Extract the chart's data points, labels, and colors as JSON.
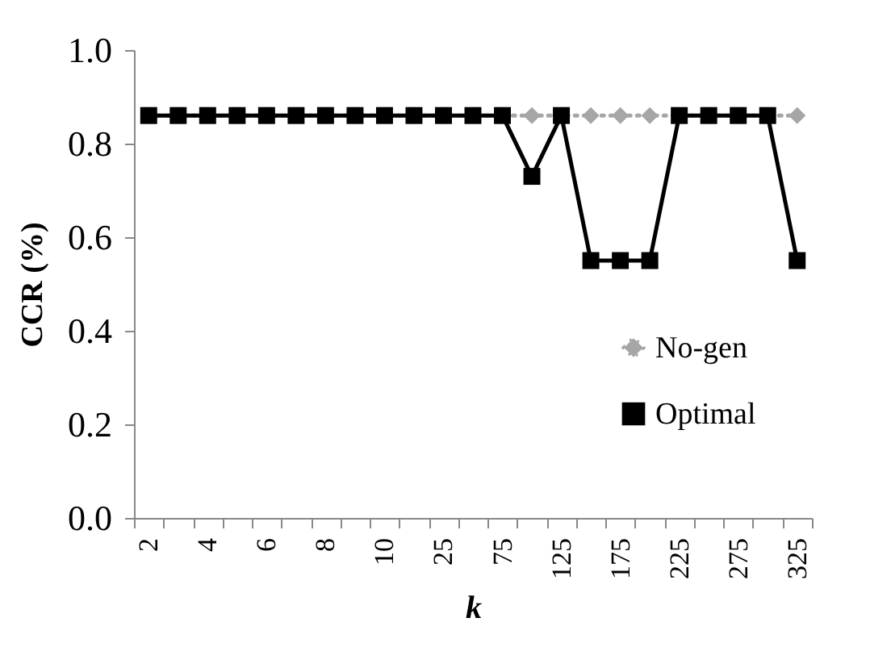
{
  "chart_data": {
    "type": "line",
    "xlabel": "k",
    "ylabel": "CCR (%)",
    "categories": [
      "2",
      null,
      "4",
      null,
      "6",
      null,
      "8",
      null,
      "10",
      null,
      "25",
      null,
      "75",
      null,
      "125",
      null,
      "175",
      null,
      "225",
      null,
      "275",
      null,
      "325"
    ],
    "series": [
      {
        "name": "No-gen",
        "color": "#a6a6a6",
        "marker": "diamond",
        "line_style": "dotted",
        "values": [
          0.86,
          0.86,
          0.86,
          0.86,
          0.86,
          0.86,
          0.86,
          0.86,
          0.86,
          0.86,
          0.86,
          0.86,
          0.86,
          0.86,
          0.86,
          0.86,
          0.86,
          0.86,
          0.86,
          0.86,
          0.86,
          0.86,
          0.86
        ]
      },
      {
        "name": "Optimal",
        "color": "#000000",
        "marker": "square",
        "line_style": "solid",
        "values": [
          0.86,
          0.86,
          0.86,
          0.86,
          0.86,
          0.86,
          0.86,
          0.86,
          0.86,
          0.86,
          0.86,
          0.86,
          0.86,
          0.73,
          0.86,
          0.55,
          0.55,
          0.55,
          0.86,
          0.86,
          0.86,
          0.86,
          0.55
        ]
      }
    ],
    "ylim": [
      0,
      1
    ],
    "yticks": [
      {
        "value": 0,
        "label": "0.0"
      },
      {
        "value": 0.2,
        "label": "0.2"
      },
      {
        "value": 0.4,
        "label": "0.4"
      },
      {
        "value": 0.6,
        "label": "0.6"
      },
      {
        "value": 0.8,
        "label": "0.8"
      },
      {
        "value": 1,
        "label": "1.0"
      }
    ],
    "grid": false,
    "legend": "bottom right"
  }
}
